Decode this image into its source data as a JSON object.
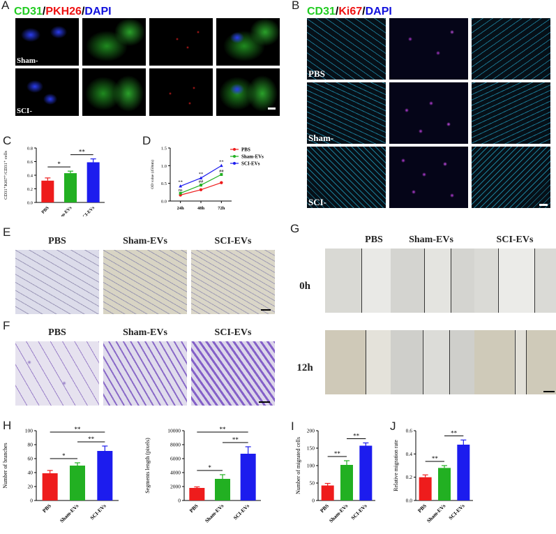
{
  "panels": {
    "A": {
      "label": "A",
      "title": {
        "c1": "CD31",
        "sep1": "/",
        "c2": "PKH26",
        "sep2": "/",
        "c3": "DAPI"
      },
      "rows": [
        "Sham-EVs",
        "SCI-EVs"
      ]
    },
    "B": {
      "label": "B",
      "title": {
        "c1": "CD31",
        "sep1": "/",
        "c2": "Ki67",
        "sep2": "/",
        "c3": "DAPI"
      },
      "rows": [
        "PBS",
        "Sham-EVs",
        "SCI-EVs"
      ]
    },
    "C": {
      "label": "C"
    },
    "D": {
      "label": "D"
    },
    "E": {
      "label": "E",
      "cols": [
        "PBS",
        "Sham-EVs",
        "SCI-EVs"
      ]
    },
    "F": {
      "label": "F",
      "cols": [
        "PBS",
        "Sham-EVs",
        "SCI-EVs"
      ]
    },
    "G": {
      "label": "G",
      "cols": [
        "PBS",
        "Sham-EVs",
        "SCI-EVs"
      ],
      "rows": [
        "0h",
        "12h"
      ]
    },
    "H": {
      "label": "H"
    },
    "I": {
      "label": "I"
    },
    "J": {
      "label": "J"
    }
  },
  "colors": {
    "pbs": "#ee1c1c",
    "sham": "#22b022",
    "sci": "#1c1cee",
    "green": "#22cc22",
    "red": "#ee1111",
    "blue": "#1111dd"
  },
  "chart_data": [
    {
      "id": "C",
      "type": "bar",
      "categories": [
        "PBS",
        "Sham-EVs",
        "SCI-EVs"
      ],
      "values": [
        0.32,
        0.43,
        0.59
      ],
      "errors": [
        0.04,
        0.03,
        0.05
      ],
      "ylabel": "CD31⁺Ki67⁺/CD31⁺ cells",
      "yticks": [
        "0.0",
        "0.2",
        "0.4",
        "0.6",
        "0.8"
      ],
      "ylim": [
        0,
        0.8
      ],
      "sig": [
        {
          "from": 0,
          "to": 1,
          "text": "*"
        },
        {
          "from": 1,
          "to": 2,
          "text": "**"
        }
      ]
    },
    {
      "id": "D",
      "type": "line",
      "x": [
        "24h",
        "48h",
        "72h"
      ],
      "ylabel": "OD value (450nm)",
      "yticks": [
        "0.0",
        "0.5",
        "1.0",
        "1.5"
      ],
      "ylim": [
        0,
        1.5
      ],
      "series": [
        {
          "name": "PBS",
          "values": [
            0.17,
            0.32,
            0.52
          ]
        },
        {
          "name": "Sham-EVs",
          "values": [
            0.22,
            0.45,
            0.75
          ]
        },
        {
          "name": "SCI-EVs",
          "values": [
            0.42,
            0.65,
            1.0
          ]
        }
      ],
      "annotations": [
        {
          "x": 0,
          "y": 0.42,
          "text": "**"
        },
        {
          "x": 1,
          "y": 0.65,
          "text": "**"
        },
        {
          "x": 2,
          "y": 1.0,
          "text": "**"
        },
        {
          "x": 0,
          "y": 0.22,
          "text": "ns"
        },
        {
          "x": 1,
          "y": 0.45,
          "text": "##"
        },
        {
          "x": 2,
          "y": 0.75,
          "text": "##"
        }
      ]
    },
    {
      "id": "H1",
      "type": "bar",
      "categories": [
        "PBS",
        "Sham-EVs",
        "SCI-EVs"
      ],
      "values": [
        39,
        50,
        71
      ],
      "errors": [
        4,
        4,
        7
      ],
      "ylabel": "Number of branches",
      "yticks": [
        "0",
        "20",
        "40",
        "60",
        "80",
        "100"
      ],
      "ylim": [
        0,
        100
      ],
      "sig": [
        {
          "from": 0,
          "to": 1,
          "text": "*"
        },
        {
          "from": 1,
          "to": 2,
          "text": "**"
        },
        {
          "from": 0,
          "to": 2,
          "text": "**"
        }
      ]
    },
    {
      "id": "H2",
      "type": "bar",
      "categories": [
        "PBS",
        "Sham-EVs",
        "SCI-EVs"
      ],
      "values": [
        1800,
        3100,
        6700
      ],
      "errors": [
        150,
        600,
        1000
      ],
      "ylabel": "Segments length (pixels)",
      "yticks": [
        "0",
        "2000",
        "4000",
        "6000",
        "8000",
        "10000"
      ],
      "ylim": [
        0,
        10000
      ],
      "sig": [
        {
          "from": 0,
          "to": 1,
          "text": "*"
        },
        {
          "from": 1,
          "to": 2,
          "text": "**"
        },
        {
          "from": 0,
          "to": 2,
          "text": "**"
        }
      ]
    },
    {
      "id": "I",
      "type": "bar",
      "categories": [
        "PBS",
        "Sham-EVs",
        "SCI-EVs"
      ],
      "values": [
        43,
        102,
        157
      ],
      "errors": [
        6,
        12,
        8
      ],
      "ylabel": "Number of migrated cells",
      "yticks": [
        "0",
        "50",
        "100",
        "150",
        "200"
      ],
      "ylim": [
        0,
        200
      ],
      "sig": [
        {
          "from": 0,
          "to": 1,
          "text": "**"
        },
        {
          "from": 1,
          "to": 2,
          "text": "**"
        }
      ]
    },
    {
      "id": "J",
      "type": "bar",
      "categories": [
        "PBS",
        "Sham-EVs",
        "SCI-EVs"
      ],
      "values": [
        0.2,
        0.28,
        0.48
      ],
      "errors": [
        0.02,
        0.02,
        0.04
      ],
      "ylabel": "Relative migration rate",
      "yticks": [
        "0.0",
        "0.2",
        "0.4",
        "0.6"
      ],
      "ylim": [
        0,
        0.6
      ],
      "sig": [
        {
          "from": 0,
          "to": 1,
          "text": "**"
        },
        {
          "from": 1,
          "to": 2,
          "text": "**"
        }
      ]
    }
  ]
}
